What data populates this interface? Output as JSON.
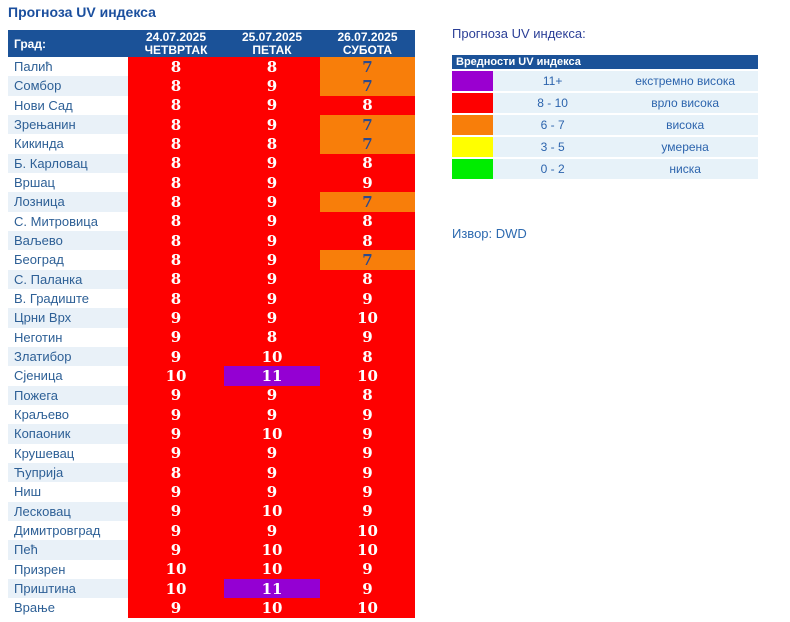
{
  "title": "Прогноза UV индекса",
  "table": {
    "city_header": "Град:",
    "columns": [
      {
        "date": "24.07.2025",
        "weekday": "ЧЕТВРТАК"
      },
      {
        "date": "25.07.2025",
        "weekday": "ПЕТАК"
      },
      {
        "date": "26.07.2025",
        "weekday": "СУБОТА"
      }
    ],
    "rows": [
      {
        "city": "Палић",
        "values": [
          8,
          8,
          7
        ]
      },
      {
        "city": "Сомбор",
        "values": [
          8,
          9,
          7
        ]
      },
      {
        "city": "Нови Сад",
        "values": [
          8,
          9,
          8
        ]
      },
      {
        "city": "Зрењанин",
        "values": [
          8,
          9,
          7
        ]
      },
      {
        "city": "Кикинда",
        "values": [
          8,
          8,
          7
        ]
      },
      {
        "city": "Б. Карловац",
        "values": [
          8,
          9,
          8
        ]
      },
      {
        "city": "Вршац",
        "values": [
          8,
          9,
          9
        ]
      },
      {
        "city": "Лозница",
        "values": [
          8,
          9,
          7
        ]
      },
      {
        "city": "С. Митровица",
        "values": [
          8,
          9,
          8
        ]
      },
      {
        "city": "Ваљево",
        "values": [
          8,
          9,
          8
        ]
      },
      {
        "city": "Београд",
        "values": [
          8,
          9,
          7
        ]
      },
      {
        "city": "С. Паланка",
        "values": [
          8,
          9,
          8
        ]
      },
      {
        "city": "В. Градиште",
        "values": [
          8,
          9,
          9
        ]
      },
      {
        "city": "Црни Врх",
        "values": [
          9,
          9,
          10
        ]
      },
      {
        "city": "Неготин",
        "values": [
          9,
          8,
          9
        ]
      },
      {
        "city": "Златибор",
        "values": [
          9,
          10,
          8
        ]
      },
      {
        "city": "Сјеница",
        "values": [
          10,
          11,
          10
        ]
      },
      {
        "city": "Пожега",
        "values": [
          9,
          9,
          8
        ]
      },
      {
        "city": "Краљево",
        "values": [
          9,
          9,
          9
        ]
      },
      {
        "city": "Копаоник",
        "values": [
          9,
          10,
          9
        ]
      },
      {
        "city": "Крушевац",
        "values": [
          9,
          9,
          9
        ]
      },
      {
        "city": "Ћуприја",
        "values": [
          8,
          9,
          9
        ]
      },
      {
        "city": "Ниш",
        "values": [
          9,
          9,
          9
        ]
      },
      {
        "city": "Лесковац",
        "values": [
          9,
          10,
          9
        ]
      },
      {
        "city": "Димитровград",
        "values": [
          9,
          9,
          10
        ]
      },
      {
        "city": "Пећ",
        "values": [
          9,
          10,
          10
        ]
      },
      {
        "city": "Призрен",
        "values": [
          10,
          10,
          9
        ]
      },
      {
        "city": "Приштина",
        "values": [
          10,
          11,
          9
        ]
      },
      {
        "city": "Врање",
        "values": [
          9,
          10,
          10
        ]
      }
    ]
  },
  "legend": {
    "title": "Прогноза UV индекса:",
    "header": "Вредности UV индекса",
    "entries": [
      {
        "range": "11+",
        "label": "екстремно висока",
        "color": "#9a00d0"
      },
      {
        "range": "8 - 10",
        "label": "врло висока",
        "color": "#fe0000"
      },
      {
        "range": "6 - 7",
        "label": "висока",
        "color": "#f87e0a"
      },
      {
        "range": "3 - 5",
        "label": "умерена",
        "color": "#ffff00"
      },
      {
        "range": "0 - 2",
        "label": "ниска",
        "color": "#00ed00"
      }
    ]
  },
  "source": "Извор: DWD",
  "colors": {
    "header_blue": "#1b5298",
    "uv_red": "#fe0000",
    "uv_orange": "#f87e0a",
    "uv_purple": "#9400d3",
    "row_alt": "#e9f1f8"
  }
}
